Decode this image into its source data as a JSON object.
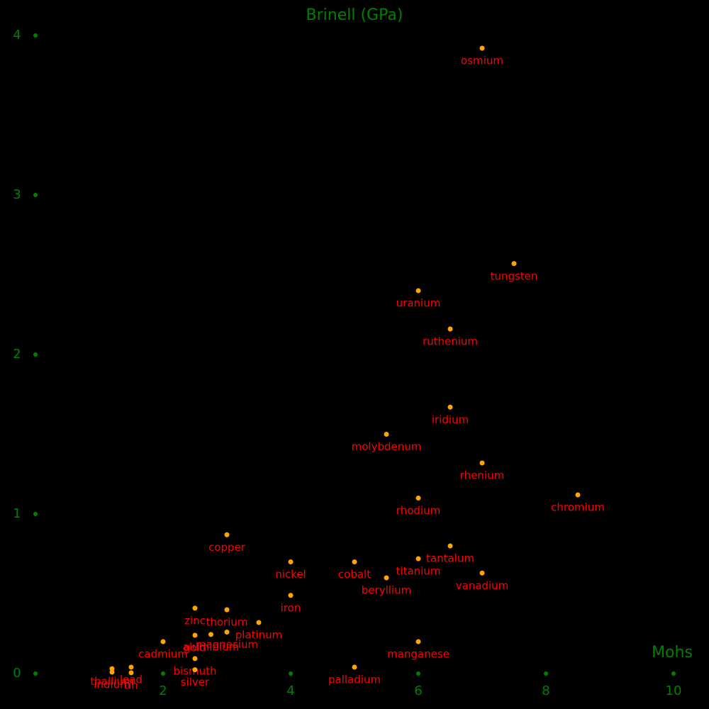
{
  "chart_data": {
    "type": "scatter",
    "title": "Brinell (GPa)",
    "x_label": "Mohs",
    "labels": [
      "osmium",
      "tungsten",
      "uranium",
      "ruthenium",
      "iridium",
      "molybdenum",
      "rhenium",
      "chromium",
      "rhodium",
      "copper",
      "tantalum",
      "titanium",
      "nickel",
      "cobalt",
      "vanadium",
      "beryllium",
      "iron",
      "zinc",
      "thorium",
      "platinum",
      "gold",
      "aluminium",
      "magnesium",
      "cadmium",
      "manganese",
      "bismuth",
      "silver",
      "palladium",
      "lead",
      "tin",
      "thallium",
      "indium"
    ],
    "x": [
      7,
      7.5,
      6,
      6.5,
      6.5,
      5.5,
      7,
      8.5,
      6,
      3,
      6.5,
      6,
      4,
      5,
      7,
      5.5,
      4,
      2.5,
      3,
      3.5,
      2.5,
      2.75,
      3,
      2,
      6,
      2.5,
      2.5,
      5,
      1.5,
      1.5,
      1.2,
      1.2
    ],
    "values": [
      3.92,
      2.57,
      2.4,
      2.16,
      1.67,
      1.5,
      1.32,
      1.12,
      1.1,
      0.87,
      0.8,
      0.72,
      0.7,
      0.7,
      0.63,
      0.6,
      0.49,
      0.41,
      0.4,
      0.32,
      0.24,
      0.245,
      0.26,
      0.2,
      0.2,
      0.094,
      0.024,
      0.04,
      0.04,
      0.005,
      0.03,
      0.009
    ],
    "color": "#ffa500",
    "label_color": "#ff0000",
    "axis_color": "#008000",
    "xlim": [
      0,
      10
    ],
    "ylim": [
      0,
      4
    ],
    "xticks": [
      2,
      4,
      6,
      8,
      10
    ],
    "yticks": [
      0,
      1,
      2,
      3,
      4
    ]
  }
}
